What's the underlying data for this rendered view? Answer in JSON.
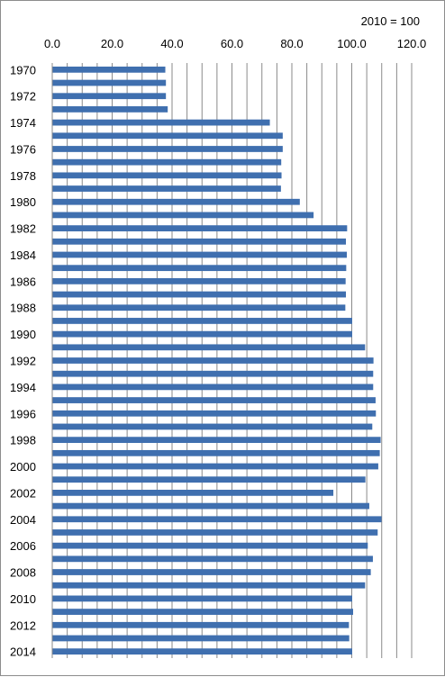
{
  "chart_data": {
    "type": "bar",
    "orientation": "horizontal",
    "unit_note": "2010 = 100",
    "title": "",
    "xlabel": "",
    "ylabel": "",
    "xlim": [
      0,
      120
    ],
    "x_ticks": [
      "0.0",
      "20.0",
      "40.0",
      "60.0",
      "80.0",
      "100.0",
      "120.0"
    ],
    "x_tick_values": [
      0,
      20,
      40,
      60,
      80,
      100,
      120
    ],
    "minor_gridline_step": 5,
    "axis_position": "top",
    "grid": true,
    "legend": "none",
    "bar_color": "#3f6faf",
    "categories": [
      "1970",
      "1971",
      "1972",
      "1973",
      "1974",
      "1975",
      "1976",
      "1977",
      "1978",
      "1979",
      "1980",
      "1981",
      "1982",
      "1983",
      "1984",
      "1985",
      "1986",
      "1987",
      "1988",
      "1989",
      "1990",
      "1991",
      "1992",
      "1993",
      "1994",
      "1995",
      "1996",
      "1997",
      "1998",
      "1999",
      "2000",
      "2001",
      "2002",
      "2003",
      "2004",
      "2005",
      "2006",
      "2007",
      "2008",
      "2009",
      "2010",
      "2011",
      "2012",
      "2013",
      "2014"
    ],
    "category_labels_shown": [
      "1970",
      "",
      "1972",
      "",
      "1974",
      "",
      "1976",
      "",
      "1978",
      "",
      "1980",
      "",
      "1982",
      "",
      "1984",
      "",
      "1986",
      "",
      "1988",
      "",
      "1990",
      "",
      "1992",
      "",
      "1994",
      "",
      "1996",
      "",
      "1998",
      "",
      "2000",
      "",
      "2002",
      "",
      "2004",
      "",
      "2006",
      "",
      "2008",
      "",
      "2010",
      "",
      "2012",
      "",
      "2014"
    ],
    "values": [
      37.6,
      37.8,
      37.8,
      38.4,
      72.5,
      76.8,
      76.8,
      76.3,
      76.4,
      76.2,
      82.5,
      87.1,
      98.3,
      97.9,
      98.2,
      98.0,
      97.8,
      97.9,
      97.7,
      100.0,
      100.0,
      104.3,
      107.1,
      107.0,
      107.0,
      107.8,
      107.9,
      106.7,
      109.5,
      109.2,
      108.7,
      104.4,
      93.7,
      105.7,
      109.8,
      108.5,
      105.2,
      106.9,
      106.2,
      104.3,
      100.0,
      100.3,
      98.9,
      99.0,
      100.0
    ]
  }
}
